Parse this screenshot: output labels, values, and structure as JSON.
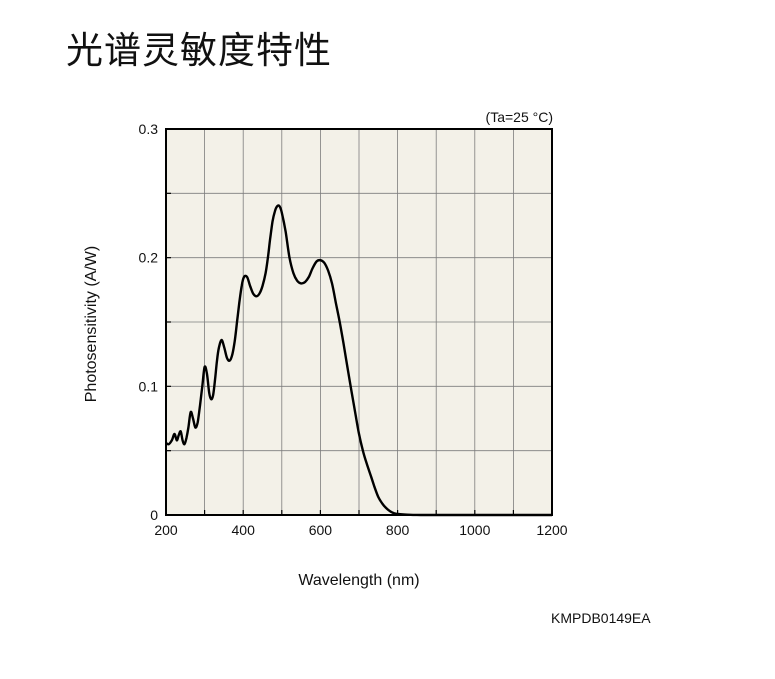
{
  "page": {
    "title": "光谱灵敏度特性",
    "figure_code": "KMPDB0149EA"
  },
  "chart_data": {
    "type": "line",
    "title": "光谱灵敏度特性",
    "xlabel": "Wavelength (nm)",
    "ylabel": "Photosensitivity (A/W)",
    "annotation": "(Ta=25 °C)",
    "xlim": [
      200,
      1200
    ],
    "ylim": [
      0,
      0.3
    ],
    "x_ticks": [
      200,
      400,
      600,
      800,
      1000,
      1200
    ],
    "x_tick_labels": [
      "200",
      "400",
      "600",
      "800",
      "1000",
      "1200"
    ],
    "y_ticks": [
      0,
      0.1,
      0.2,
      0.3
    ],
    "y_tick_labels": [
      "0",
      "0.1",
      "0.2",
      "0.3"
    ],
    "grid": true,
    "plot_background": "#f3f1e8",
    "line_color": "#000000",
    "series": [
      {
        "x": [
          200,
          207,
          215,
          222,
          228,
          233,
          238,
          243,
          248,
          253,
          258,
          264,
          270,
          276,
          282,
          288,
          294,
          300,
          306,
          312,
          317,
          322,
          327,
          332,
          337,
          344,
          351,
          358,
          365,
          372,
          378,
          384,
          390,
          396,
          402,
          410,
          418,
          426,
          434,
          442,
          450,
          458,
          464,
          470,
          476,
          482,
          488,
          494,
          500,
          510,
          520,
          530,
          540,
          550,
          560,
          570,
          580,
          590,
          600,
          610,
          620,
          630,
          640,
          650,
          660,
          670,
          680,
          690,
          700,
          710,
          720,
          730,
          740,
          750,
          760,
          770,
          780,
          790,
          800,
          820,
          840,
          860,
          880,
          900,
          920,
          940,
          960,
          980,
          1000,
          1020,
          1040,
          1060,
          1080,
          1100,
          1120,
          1140,
          1160,
          1180,
          1200
        ],
        "y": [
          0.056,
          0.055,
          0.058,
          0.063,
          0.058,
          0.062,
          0.065,
          0.058,
          0.055,
          0.06,
          0.068,
          0.08,
          0.075,
          0.068,
          0.072,
          0.085,
          0.1,
          0.115,
          0.11,
          0.095,
          0.09,
          0.093,
          0.105,
          0.12,
          0.13,
          0.136,
          0.13,
          0.122,
          0.12,
          0.125,
          0.135,
          0.15,
          0.165,
          0.178,
          0.185,
          0.185,
          0.178,
          0.172,
          0.17,
          0.172,
          0.178,
          0.188,
          0.2,
          0.215,
          0.228,
          0.236,
          0.24,
          0.24,
          0.235,
          0.22,
          0.2,
          0.188,
          0.182,
          0.18,
          0.181,
          0.185,
          0.192,
          0.197,
          0.198,
          0.196,
          0.19,
          0.18,
          0.165,
          0.15,
          0.133,
          0.115,
          0.097,
          0.08,
          0.063,
          0.05,
          0.04,
          0.031,
          0.022,
          0.014,
          0.009,
          0.0055,
          0.003,
          0.0015,
          0.0008,
          0.0003,
          0.0001,
          0.0,
          0.0,
          0.0,
          0.0,
          0.0,
          0.0,
          0.0,
          0.0,
          0.0,
          0.0,
          0.0,
          0.0,
          0.0,
          0.0,
          0.0,
          0.0,
          0.0,
          0.0
        ]
      }
    ]
  }
}
